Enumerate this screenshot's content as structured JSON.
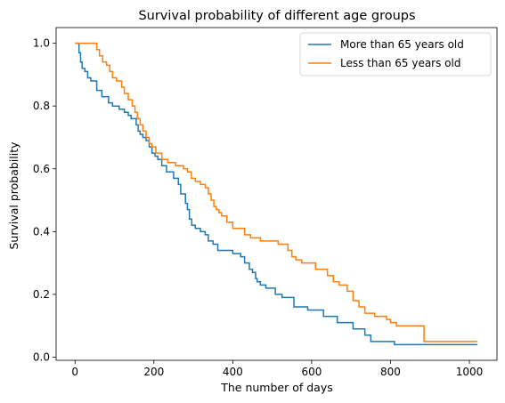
{
  "chart_data": {
    "type": "line",
    "step": true,
    "title": "Survival probability of different age groups",
    "xlabel": "The number of days",
    "ylabel": "Survival probability",
    "xlim": [
      -48,
      1070
    ],
    "ylim": [
      -0.01,
      1.05
    ],
    "xticks": [
      0,
      200,
      400,
      600,
      800,
      1000
    ],
    "yticks": [
      0.0,
      0.2,
      0.4,
      0.6,
      0.8,
      1.0
    ],
    "xtick_labels": [
      "0",
      "200",
      "400",
      "600",
      "800",
      "1000"
    ],
    "ytick_labels": [
      "0.0",
      "0.2",
      "0.4",
      "0.6",
      "0.8",
      "1.0"
    ],
    "grid": false,
    "legend": "top-right",
    "series": [
      {
        "name": "More than 65 years old",
        "color": "#1f77b4",
        "x": [
          0,
          10,
          14,
          18,
          25,
          32,
          40,
          55,
          68,
          85,
          95,
          112,
          125,
          135,
          142,
          155,
          160,
          165,
          172,
          180,
          188,
          195,
          203,
          210,
          220,
          232,
          250,
          262,
          268,
          280,
          285,
          290,
          296,
          305,
          318,
          330,
          338,
          350,
          362,
          372,
          400,
          420,
          430,
          442,
          450,
          458,
          462,
          470,
          484,
          508,
          525,
          555,
          590,
          630,
          665,
          705,
          735,
          750,
          810,
          1020
        ],
        "y": [
          1.0,
          0.97,
          0.94,
          0.92,
          0.91,
          0.89,
          0.88,
          0.85,
          0.83,
          0.81,
          0.8,
          0.79,
          0.78,
          0.77,
          0.76,
          0.74,
          0.72,
          0.71,
          0.7,
          0.69,
          0.67,
          0.65,
          0.64,
          0.63,
          0.61,
          0.59,
          0.57,
          0.55,
          0.52,
          0.49,
          0.47,
          0.44,
          0.42,
          0.41,
          0.4,
          0.39,
          0.37,
          0.36,
          0.34,
          0.34,
          0.33,
          0.32,
          0.3,
          0.28,
          0.27,
          0.25,
          0.24,
          0.23,
          0.22,
          0.2,
          0.19,
          0.16,
          0.15,
          0.13,
          0.11,
          0.09,
          0.07,
          0.05,
          0.04,
          0.04
        ]
      },
      {
        "name": "Less than 65 years old",
        "color": "#ff7f0e",
        "x": [
          0,
          55,
          62,
          70,
          80,
          88,
          95,
          105,
          118,
          125,
          135,
          145,
          152,
          158,
          165,
          172,
          180,
          188,
          195,
          205,
          220,
          235,
          255,
          275,
          285,
          295,
          305,
          318,
          330,
          338,
          345,
          352,
          358,
          365,
          372,
          385,
          400,
          430,
          445,
          470,
          515,
          540,
          550,
          560,
          575,
          610,
          640,
          655,
          670,
          690,
          705,
          720,
          735,
          760,
          790,
          800,
          815,
          850,
          885,
          1020
        ],
        "y": [
          1.0,
          0.98,
          0.96,
          0.94,
          0.93,
          0.91,
          0.89,
          0.88,
          0.86,
          0.84,
          0.82,
          0.8,
          0.78,
          0.76,
          0.74,
          0.72,
          0.7,
          0.68,
          0.67,
          0.65,
          0.63,
          0.62,
          0.61,
          0.6,
          0.59,
          0.57,
          0.56,
          0.55,
          0.54,
          0.52,
          0.5,
          0.48,
          0.47,
          0.46,
          0.45,
          0.43,
          0.41,
          0.39,
          0.38,
          0.37,
          0.36,
          0.34,
          0.32,
          0.31,
          0.3,
          0.28,
          0.26,
          0.24,
          0.23,
          0.21,
          0.18,
          0.16,
          0.14,
          0.13,
          0.12,
          0.11,
          0.1,
          0.1,
          0.05,
          0.05
        ]
      }
    ]
  }
}
